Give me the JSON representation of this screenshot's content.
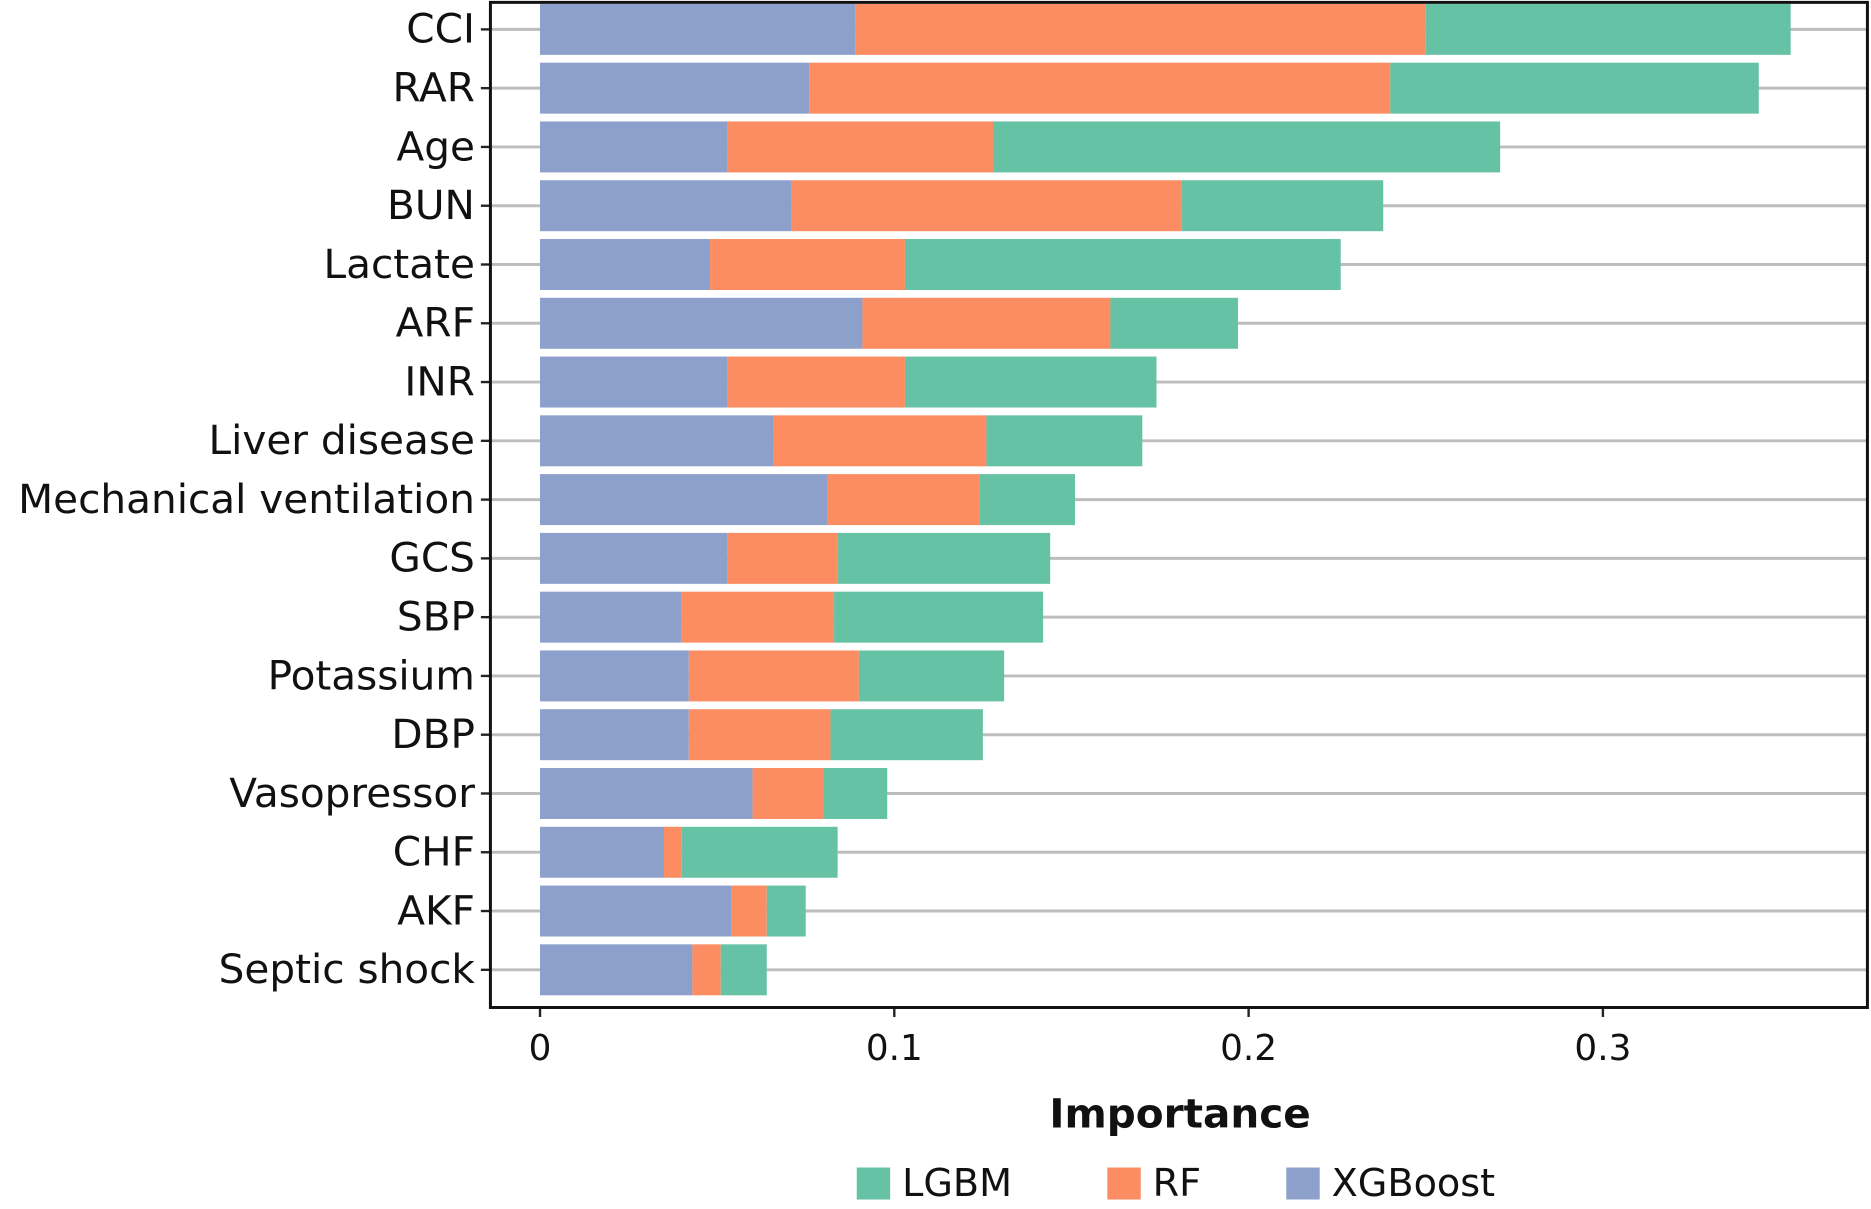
{
  "chart_data": {
    "type": "stacked-barh",
    "x_label": "Importance",
    "categories": [
      "CCI",
      "RAR",
      "Age",
      "BUN",
      "Lactate",
      "ARF",
      "INR",
      "Liver disease",
      "Mechanical ventilation",
      "GCS",
      "SBP",
      "Potassium",
      "DBP",
      "Vasopressor",
      "CHF",
      "AKF",
      "Septic shock"
    ],
    "series": [
      {
        "name": "LGBM",
        "color": "#66c2a5",
        "values": [
          0.103,
          0.104,
          0.143,
          0.057,
          0.123,
          0.036,
          0.071,
          0.044,
          0.027,
          0.06,
          0.059,
          0.041,
          0.043,
          0.018,
          0.044,
          0.011,
          0.013
        ]
      },
      {
        "name": "RF",
        "color": "#fc8d62",
        "values": [
          0.161,
          0.164,
          0.075,
          0.11,
          0.055,
          0.07,
          0.05,
          0.06,
          0.043,
          0.031,
          0.043,
          0.048,
          0.04,
          0.02,
          0.005,
          0.01,
          0.008
        ]
      },
      {
        "name": "XGBoost",
        "color": "#8da0cb",
        "values": [
          0.089,
          0.076,
          0.053,
          0.071,
          0.048,
          0.091,
          0.053,
          0.066,
          0.081,
          0.053,
          0.04,
          0.042,
          0.042,
          0.06,
          0.035,
          0.054,
          0.043
        ]
      }
    ],
    "xlim": [
      -0.014,
      0.375
    ],
    "xticks": [
      0,
      0.1,
      0.2,
      0.3
    ],
    "grid": true,
    "legend": "bottom"
  }
}
